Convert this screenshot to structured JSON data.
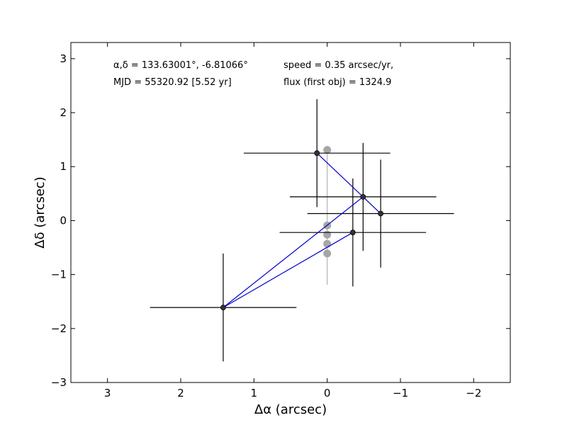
{
  "chart_data": {
    "type": "scatter",
    "xlabel": "Δα (arcsec)",
    "ylabel": "Δδ (arcsec)",
    "xlim": [
      3.5,
      -2.5
    ],
    "ylim": [
      -3,
      3.3
    ],
    "x_inverted": true,
    "grid": false,
    "xticks": [
      3,
      2,
      1,
      0,
      -1,
      -2
    ],
    "xtick_labels": [
      "3",
      "2",
      "1",
      "0",
      "−1",
      "−2"
    ],
    "yticks": [
      -3,
      -2,
      -1,
      0,
      1,
      2,
      3
    ],
    "ytick_labels": [
      "−3",
      "−2",
      "−1",
      "0",
      "1",
      "2",
      "3"
    ],
    "annotations": [
      {
        "text": "α,δ = 133.63001°, -6.81066°"
      },
      {
        "text": "MJD = 55320.92 [5.52 yr]"
      },
      {
        "text": "speed = 0.35 arcsec/yr,"
      },
      {
        "text": "flux (first obj) = 1324.9"
      }
    ],
    "series": [
      {
        "role": "measurements",
        "color": "#000000",
        "points": [
          {
            "x": 0.14,
            "y": 1.25,
            "xerr": 1.0,
            "yerr": 1.0
          },
          {
            "x": -0.49,
            "y": 0.44,
            "xerr": 1.0,
            "yerr": 1.0
          },
          {
            "x": -0.73,
            "y": 0.13,
            "xerr": 1.0,
            "yerr": 1.0
          },
          {
            "x": -0.35,
            "y": -0.22,
            "xerr": 1.0,
            "yerr": 1.0
          },
          {
            "x": 1.42,
            "y": -1.61,
            "xerr": 1.0,
            "yerr": 1.0
          }
        ]
      },
      {
        "role": "path",
        "color": "#0000cc",
        "points": [
          {
            "x": 0.14,
            "y": 1.25
          },
          {
            "x": -0.73,
            "y": 0.13
          },
          {
            "x": -0.49,
            "y": 0.44
          },
          {
            "x": 1.42,
            "y": -1.61
          },
          {
            "x": -0.35,
            "y": -0.22
          }
        ]
      },
      {
        "role": "model",
        "color": "#a6a6a6",
        "points": [
          {
            "x": 0.0,
            "y": 1.31
          },
          {
            "x": 0.0,
            "y": -0.09
          },
          {
            "x": 0.0,
            "y": -0.26
          },
          {
            "x": 0.0,
            "y": -0.43
          },
          {
            "x": 0.0,
            "y": -0.61
          }
        ],
        "vertical_line": {
          "x": 0.0,
          "y1": 1.31,
          "y2": -1.19
        }
      }
    ]
  }
}
